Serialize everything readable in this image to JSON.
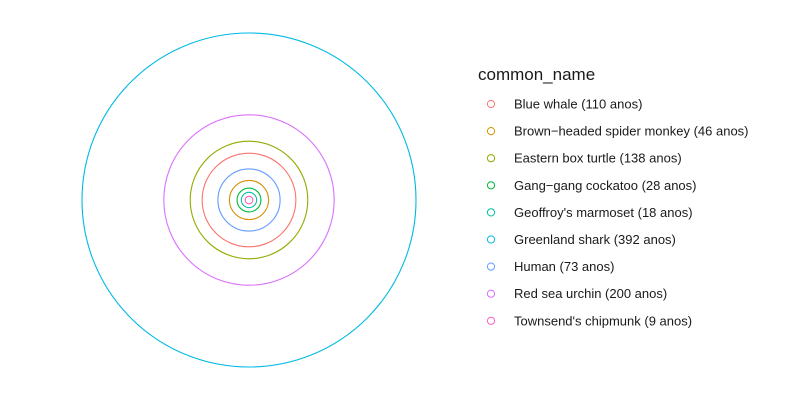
{
  "chart_data": {
    "type": "scatter",
    "title": "",
    "xlabel": "",
    "ylabel": "",
    "legend_title": "common_name",
    "legend_position": "right",
    "grid": false,
    "series": [
      {
        "name": "Blue whale (110 anos)",
        "key": "blue-whale",
        "value": 110,
        "color": "#F8766D"
      },
      {
        "name": "Brown−headed spider monkey (46 anos)",
        "key": "brown-headed-spider-monkey",
        "value": 46,
        "color": "#D39200"
      },
      {
        "name": "Eastern box turtle (138 anos)",
        "key": "eastern-box-turtle",
        "value": 138,
        "color": "#93AA00"
      },
      {
        "name": "Gang−gang cockatoo (28 anos)",
        "key": "gang-gang-cockatoo",
        "value": 28,
        "color": "#00BA38"
      },
      {
        "name": "Geoffroy's marmoset (18 anos)",
        "key": "geoffroys-marmoset",
        "value": 18,
        "color": "#00C19F"
      },
      {
        "name": "Greenland shark (392 anos)",
        "key": "greenland-shark",
        "value": 392,
        "color": "#00B9E3"
      },
      {
        "name": "Human (73 anos)",
        "key": "human",
        "value": 73,
        "color": "#619CFF"
      },
      {
        "name": "Red sea urchin (200 anos)",
        "key": "red-sea-urchin",
        "value": 200,
        "color": "#DB72FB"
      },
      {
        "name": "Townsend's chipmunk (9 anos)",
        "key": "townsends-chipmunk",
        "value": 9,
        "color": "#FF61C3"
      }
    ]
  }
}
